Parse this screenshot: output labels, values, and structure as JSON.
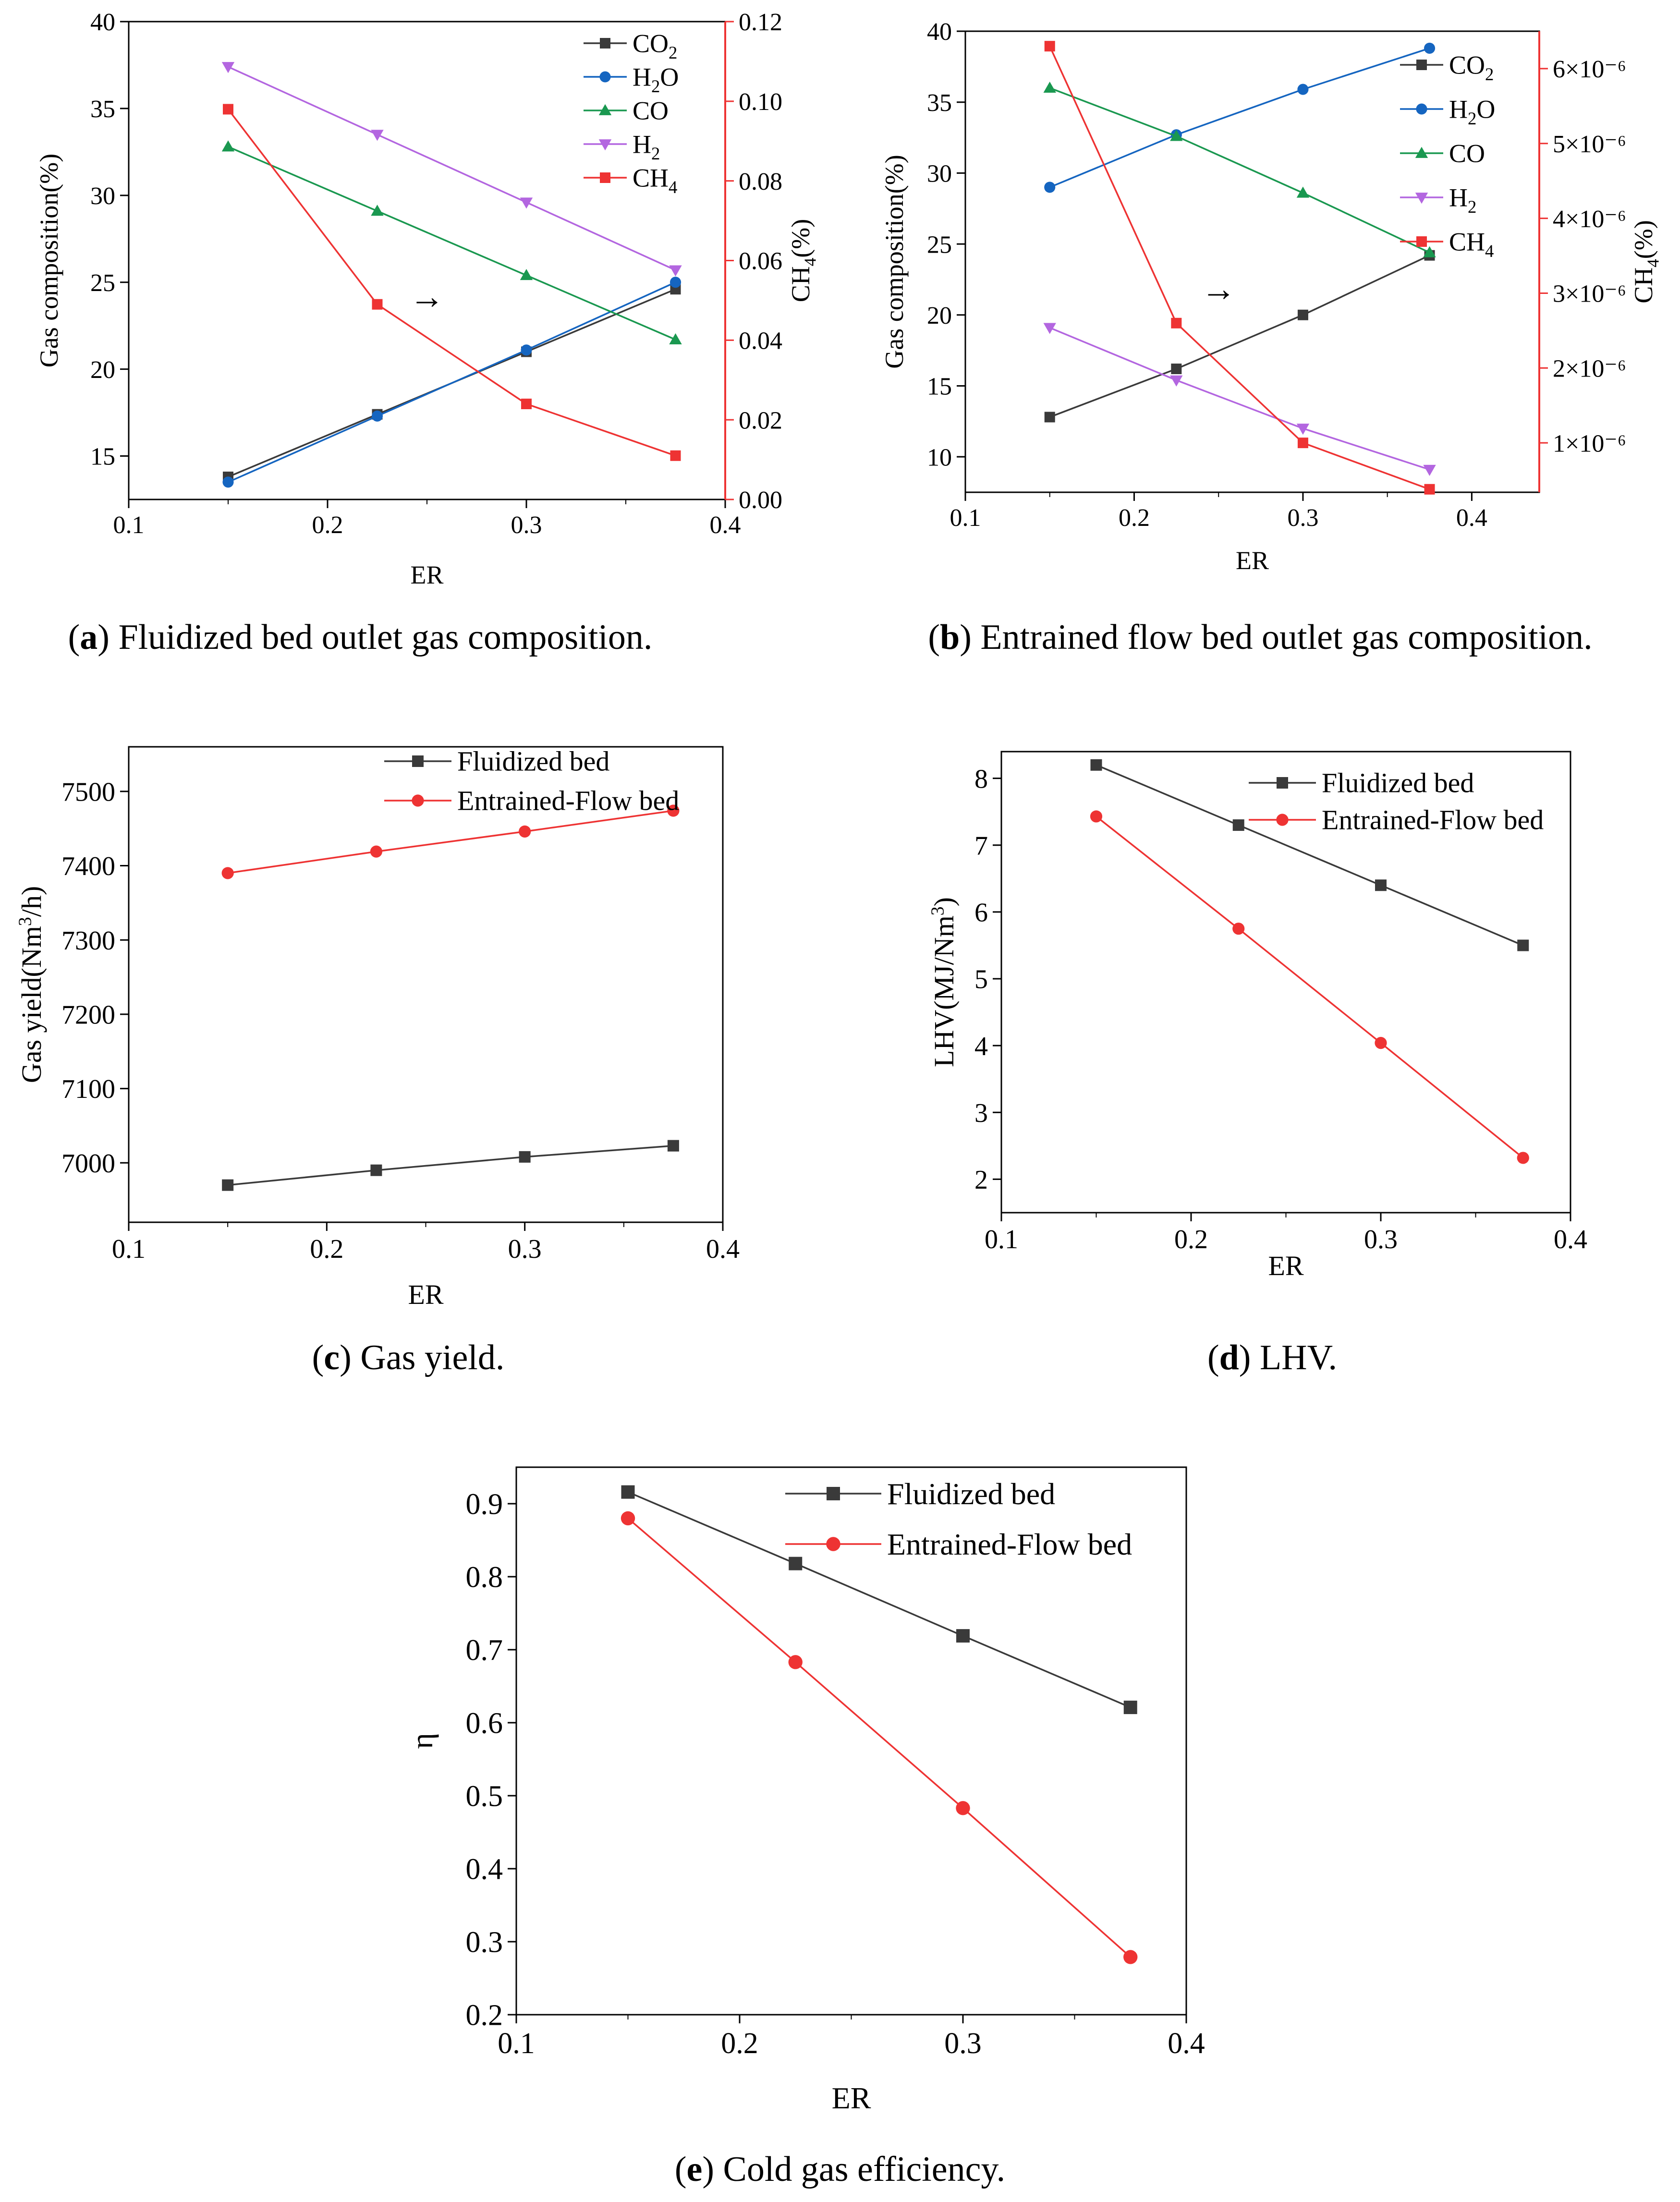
{
  "figure": {
    "captions": [
      {
        "letter": "a",
        "text": " Fluidized bed outlet gas composition."
      },
      {
        "letter": "b",
        "text": " Entrained flow bed outlet gas composition."
      },
      {
        "letter": "c",
        "text": " Gas yield."
      },
      {
        "letter": "d",
        "text": " LHV."
      },
      {
        "letter": "e",
        "text": " Cold gas efficiency."
      }
    ],
    "colors": {
      "black": "#3a3a3a",
      "blue": "#1565c0",
      "green": "#1a9850",
      "violet": "#b366e0",
      "red": "#ee3333"
    },
    "caption_parens": {
      "open": "(",
      "close": ")"
    }
  },
  "chart_data": [
    {
      "id": "a",
      "type": "line",
      "xlabel": "ER",
      "ylabel": "Gas composition(%)",
      "y2label": "CH4(%)",
      "xlim": [
        0.1,
        0.4
      ],
      "ylim": [
        12.5,
        40
      ],
      "y2lim": [
        0,
        0.12
      ],
      "xticks": [
        "0.1",
        "0.2",
        "0.3",
        "0.4"
      ],
      "yticks": [
        "15",
        "20",
        "25",
        "30",
        "35",
        "40"
      ],
      "y2ticks": [
        "0.00",
        "0.02",
        "0.04",
        "0.06",
        "0.08",
        "0.10",
        "0.12"
      ],
      "x": [
        0.15,
        0.225,
        0.3,
        0.375
      ],
      "series": [
        {
          "name": "CO2",
          "label_base": "CO",
          "label_sub": "2",
          "axis": "left",
          "marker": "square",
          "color": "#3a3a3a",
          "values": [
            13.8,
            17.4,
            21.0,
            24.6
          ]
        },
        {
          "name": "H2O",
          "label_base": "H",
          "label_sub": "2",
          "label_tail": "O",
          "axis": "left",
          "marker": "circle",
          "color": "#1565c0",
          "values": [
            13.5,
            17.3,
            21.1,
            25.0
          ]
        },
        {
          "name": "CO",
          "label_base": "CO",
          "axis": "left",
          "marker": "triangle-up",
          "color": "#1a9850",
          "values": [
            32.8,
            29.1,
            25.4,
            21.7
          ]
        },
        {
          "name": "H2",
          "label_base": "H",
          "label_sub": "2",
          "axis": "left",
          "marker": "triangle-down",
          "color": "#b366e0",
          "values": [
            37.4,
            33.5,
            29.6,
            25.7
          ]
        },
        {
          "name": "CH4",
          "label_base": "CH",
          "label_sub": "4",
          "axis": "right",
          "marker": "square",
          "color": "#ee3333",
          "values": [
            0.098,
            0.049,
            0.024,
            0.011
          ]
        }
      ],
      "annotation": {
        "symbol": "→",
        "x": 0.25,
        "y": 0.048,
        "axis": "right",
        "color": "#ee3333"
      },
      "legend": "top-right"
    },
    {
      "id": "b",
      "type": "line",
      "xlabel": "ER",
      "ylabel": "Gas composition(%)",
      "y2label": "CH4(%)",
      "xlim": [
        0.1,
        0.44
      ],
      "ylim": [
        7.5,
        40
      ],
      "y2lim": [
        3.4e-07,
        6.5e-06
      ],
      "xticks": [
        "0.1",
        "0.2",
        "0.3",
        "0.4"
      ],
      "yticks": [
        "10",
        "15",
        "20",
        "25",
        "30",
        "35",
        "40"
      ],
      "y2ticks": [
        "1×10⁻⁶",
        "2×10⁻⁶",
        "3×10⁻⁶",
        "4×10⁻⁶",
        "5×10⁻⁶",
        "6×10⁻⁶"
      ],
      "x": [
        0.15,
        0.225,
        0.3,
        0.375
      ],
      "series": [
        {
          "name": "CO2",
          "label_base": "CO",
          "label_sub": "2",
          "axis": "left",
          "marker": "square",
          "color": "#3a3a3a",
          "values": [
            12.8,
            16.2,
            20.0,
            24.2
          ]
        },
        {
          "name": "H2O",
          "label_base": "H",
          "label_sub": "2",
          "label_tail": "O",
          "axis": "left",
          "marker": "circle",
          "color": "#1565c0",
          "values": [
            29.0,
            32.7,
            35.9,
            38.8
          ]
        },
        {
          "name": "CO",
          "label_base": "CO",
          "axis": "left",
          "marker": "triangle-up",
          "color": "#1a9850",
          "values": [
            36.0,
            32.6,
            28.6,
            24.4
          ]
        },
        {
          "name": "H2",
          "label_base": "H",
          "label_sub": "2",
          "axis": "left",
          "marker": "triangle-down",
          "color": "#b366e0",
          "values": [
            19.1,
            15.4,
            12.0,
            9.1
          ]
        },
        {
          "name": "CH4",
          "label_base": "CH",
          "label_sub": "4",
          "axis": "right",
          "marker": "square",
          "color": "#ee3333",
          "values": [
            6.3e-06,
            2.6e-06,
            1e-06,
            3.8e-07
          ]
        }
      ],
      "annotation": {
        "symbol": "→",
        "x": 0.25,
        "y": 2.9e-06,
        "axis": "right",
        "color": "#ee3333"
      },
      "legend": "top-right"
    },
    {
      "id": "c",
      "type": "line",
      "xlabel": "ER",
      "ylabel": "Gas yield(Nm3/h)",
      "ylabel_parts": {
        "pre": "Gas yield(Nm",
        "sup": "3",
        "post": "/h)"
      },
      "xlim": [
        0.1,
        0.4
      ],
      "ylim": [
        6920,
        7560
      ],
      "xticks": [
        "0.1",
        "0.2",
        "0.3",
        "0.4"
      ],
      "yticks": [
        "7000",
        "7100",
        "7200",
        "7300",
        "7400",
        "7500"
      ],
      "x": [
        0.15,
        0.225,
        0.3,
        0.375
      ],
      "series": [
        {
          "name": "Fluidized bed",
          "label_base": "Fluidized bed",
          "marker": "square",
          "color": "#3a3a3a",
          "values": [
            6970,
            6990,
            7008,
            7023
          ]
        },
        {
          "name": "Entrained-Flow bed",
          "label_base": "Entrained-Flow bed",
          "marker": "circle",
          "color": "#ee3333",
          "values": [
            7390,
            7419,
            7446,
            7474
          ]
        }
      ],
      "legend": "top-right"
    },
    {
      "id": "d",
      "type": "line",
      "xlabel": "ER",
      "ylabel": "LHV(MJ/Nm3)",
      "ylabel_parts": {
        "pre": "LHV(MJ/Nm",
        "sup": "3",
        "post": ")"
      },
      "xlim": [
        0.1,
        0.4
      ],
      "ylim": [
        1.5,
        8.4
      ],
      "xticks": [
        "0.1",
        "0.2",
        "0.3",
        "0.4"
      ],
      "yticks": [
        "2",
        "3",
        "4",
        "5",
        "6",
        "7",
        "8"
      ],
      "x": [
        0.15,
        0.225,
        0.3,
        0.375
      ],
      "series": [
        {
          "name": "Fluidized bed",
          "label_base": "Fluidized bed",
          "marker": "square",
          "color": "#3a3a3a",
          "values": [
            8.2,
            7.3,
            6.4,
            5.5
          ]
        },
        {
          "name": "Entrained-Flow bed",
          "label_base": "Entrained-Flow bed",
          "marker": "circle",
          "color": "#ee3333",
          "values": [
            7.43,
            5.75,
            4.04,
            2.32
          ]
        }
      ],
      "legend": "top-right"
    },
    {
      "id": "e",
      "type": "line",
      "xlabel": "ER",
      "ylabel": "η",
      "xlim": [
        0.1,
        0.4
      ],
      "ylim": [
        0.2,
        0.95
      ],
      "xticks": [
        "0.1",
        "0.2",
        "0.3",
        "0.4"
      ],
      "yticks": [
        "0.2",
        "0.3",
        "0.4",
        "0.5",
        "0.6",
        "0.7",
        "0.8",
        "0.9"
      ],
      "x": [
        0.15,
        0.225,
        0.3,
        0.375
      ],
      "series": [
        {
          "name": "Fluidized bed",
          "label_base": "Fluidized bed",
          "marker": "square",
          "color": "#3a3a3a",
          "values": [
            0.916,
            0.818,
            0.719,
            0.621
          ]
        },
        {
          "name": "Entrained-Flow bed",
          "label_base": "Entrained-Flow bed",
          "marker": "circle",
          "color": "#ee3333",
          "values": [
            0.88,
            0.683,
            0.483,
            0.279
          ]
        }
      ],
      "legend": "top-right"
    }
  ]
}
